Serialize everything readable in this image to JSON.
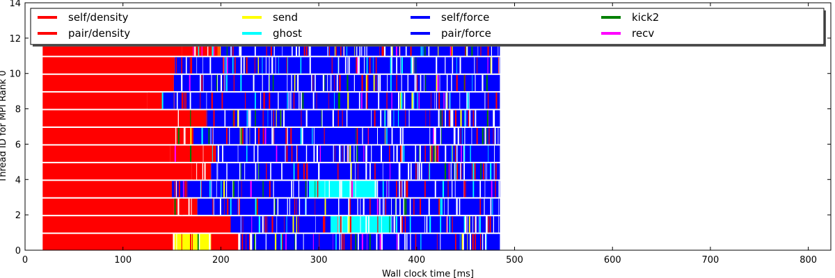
{
  "chart_data": {
    "type": "bar",
    "orientation": "horizontal-timeline",
    "title": "",
    "xlabel": "Wall clock time [ms]",
    "ylabel": "Thread ID for MPI Rank 0",
    "xlim": [
      0,
      823
    ],
    "ylim": [
      0,
      14
    ],
    "x_ticks": [
      0,
      100,
      200,
      300,
      400,
      500,
      600,
      700,
      800
    ],
    "y_ticks": [
      0,
      2,
      4,
      6,
      8,
      10,
      12,
      14
    ],
    "grid": false,
    "legend_position": "top",
    "series": [
      {
        "name": "self/density",
        "color": "#ff0000"
      },
      {
        "name": "pair/density",
        "color": "#ff0000"
      },
      {
        "name": "send",
        "color": "#ffff00"
      },
      {
        "name": "ghost",
        "color": "#00ffff"
      },
      {
        "name": "self/force",
        "color": "#0000ff"
      },
      {
        "name": "pair/force",
        "color": "#0000ff"
      },
      {
        "name": "kick2",
        "color": "#008000"
      },
      {
        "name": "recv",
        "color": "#ff00ff"
      }
    ],
    "threads": [
      {
        "id": 0,
        "start": 18,
        "end": 485,
        "segments": [
          {
            "task": "self/density",
            "start": 18,
            "end": 151
          },
          {
            "task": "send",
            "start": 151,
            "end": 190
          },
          {
            "task": "pair/density",
            "start": 190,
            "end": 220
          },
          {
            "task": "pair/force",
            "start": 220,
            "end": 485
          }
        ]
      },
      {
        "id": 1,
        "start": 18,
        "end": 485,
        "segments": [
          {
            "task": "pair/density",
            "start": 18,
            "end": 210
          },
          {
            "task": "pair/force",
            "start": 210,
            "end": 312
          },
          {
            "task": "ghost",
            "start": 312,
            "end": 374
          },
          {
            "task": "pair/force",
            "start": 374,
            "end": 485
          }
        ]
      },
      {
        "id": 2,
        "start": 18,
        "end": 485,
        "segments": [
          {
            "task": "self/density",
            "start": 18,
            "end": 152
          },
          {
            "task": "pair/density",
            "start": 152,
            "end": 176
          },
          {
            "task": "pair/force",
            "start": 176,
            "end": 485
          }
        ]
      },
      {
        "id": 3,
        "start": 18,
        "end": 485,
        "segments": [
          {
            "task": "self/density",
            "start": 18,
            "end": 150
          },
          {
            "task": "pair/force",
            "start": 150,
            "end": 290
          },
          {
            "task": "ghost",
            "start": 290,
            "end": 359
          },
          {
            "task": "pair/force",
            "start": 359,
            "end": 485
          }
        ]
      },
      {
        "id": 4,
        "start": 18,
        "end": 485,
        "segments": [
          {
            "task": "self/density",
            "start": 18,
            "end": 170
          },
          {
            "task": "pair/density",
            "start": 170,
            "end": 190
          },
          {
            "task": "pair/force",
            "start": 190,
            "end": 485
          }
        ]
      },
      {
        "id": 5,
        "start": 18,
        "end": 485,
        "segments": [
          {
            "task": "self/density",
            "start": 18,
            "end": 148
          },
          {
            "task": "pair/density",
            "start": 148,
            "end": 195
          },
          {
            "task": "pair/force",
            "start": 195,
            "end": 485
          }
        ]
      },
      {
        "id": 6,
        "start": 18,
        "end": 485,
        "segments": [
          {
            "task": "self/density",
            "start": 18,
            "end": 153
          },
          {
            "task": "pair/density",
            "start": 153,
            "end": 172
          },
          {
            "task": "pair/force",
            "start": 172,
            "end": 485
          }
        ]
      },
      {
        "id": 7,
        "start": 18,
        "end": 485,
        "segments": [
          {
            "task": "self/density",
            "start": 18,
            "end": 156
          },
          {
            "task": "pair/density",
            "start": 156,
            "end": 185
          },
          {
            "task": "pair/force",
            "start": 185,
            "end": 485
          }
        ]
      },
      {
        "id": 8,
        "start": 18,
        "end": 485,
        "segments": [
          {
            "task": "self/density",
            "start": 18,
            "end": 125
          },
          {
            "task": "pair/density",
            "start": 125,
            "end": 140
          },
          {
            "task": "pair/force",
            "start": 140,
            "end": 485
          }
        ]
      },
      {
        "id": 9,
        "start": 18,
        "end": 485,
        "segments": [
          {
            "task": "self/density",
            "start": 18,
            "end": 152
          },
          {
            "task": "pair/force",
            "start": 152,
            "end": 485
          }
        ]
      },
      {
        "id": 10,
        "start": 18,
        "end": 485,
        "segments": [
          {
            "task": "self/density",
            "start": 18,
            "end": 153
          },
          {
            "task": "pair/force",
            "start": 153,
            "end": 485
          }
        ]
      },
      {
        "id": 11,
        "start": 18,
        "end": 485,
        "segments": [
          {
            "task": "self/density",
            "start": 18,
            "end": 160
          },
          {
            "task": "pair/density",
            "start": 160,
            "end": 200
          },
          {
            "task": "pair/force",
            "start": 200,
            "end": 485
          }
        ]
      }
    ]
  }
}
